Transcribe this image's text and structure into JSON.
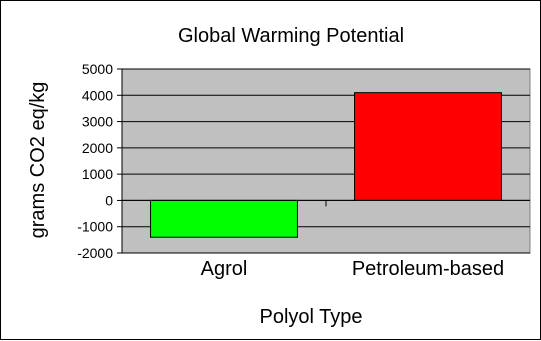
{
  "chart_data": {
    "type": "bar",
    "title": "Global Warming Potential",
    "xlabel": "Polyol Type",
    "ylabel": "grams CO2 eq/kg",
    "categories": [
      "Agrol",
      "Petroleum-based"
    ],
    "values": [
      -1400,
      4100
    ],
    "ylim": [
      -2000,
      5000
    ],
    "yticks": [
      5000,
      4000,
      3000,
      2000,
      1000,
      0,
      -1000,
      -2000
    ],
    "ytick_labels": [
      "5000",
      "4000",
      "3000",
      "2000",
      "1000",
      "0",
      "-1000",
      "-2000"
    ],
    "grid": true,
    "legend": "none",
    "colors": {
      "plot_background": "#c0c0c0",
      "bars": [
        "#00ff00",
        "#ff0000"
      ],
      "grid": "#000000"
    }
  }
}
